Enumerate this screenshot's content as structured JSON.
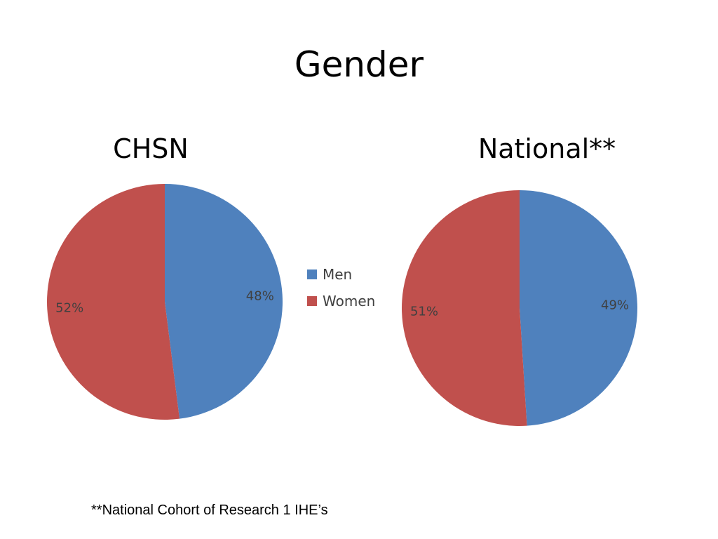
{
  "slide": {
    "title": "Gender",
    "footnote": "**National Cohort of Research 1 IHE’s"
  },
  "chart_data": [
    {
      "type": "pie",
      "title": "CHSN",
      "categories": [
        "Men",
        "Women"
      ],
      "values": [
        48,
        52
      ],
      "labels": [
        "48%",
        "52%"
      ],
      "colors": [
        "#4f81bd",
        "#c0504d"
      ],
      "legend": "right"
    },
    {
      "type": "pie",
      "title": "National**",
      "categories": [
        "Men",
        "Women"
      ],
      "values": [
        49,
        51
      ],
      "labels": [
        "49%",
        "51%"
      ],
      "colors": [
        "#4f81bd",
        "#c0504d"
      ]
    }
  ],
  "legend": {
    "items": [
      {
        "label": "Men",
        "color": "#4f81bd"
      },
      {
        "label": "Women",
        "color": "#c0504d"
      }
    ]
  }
}
